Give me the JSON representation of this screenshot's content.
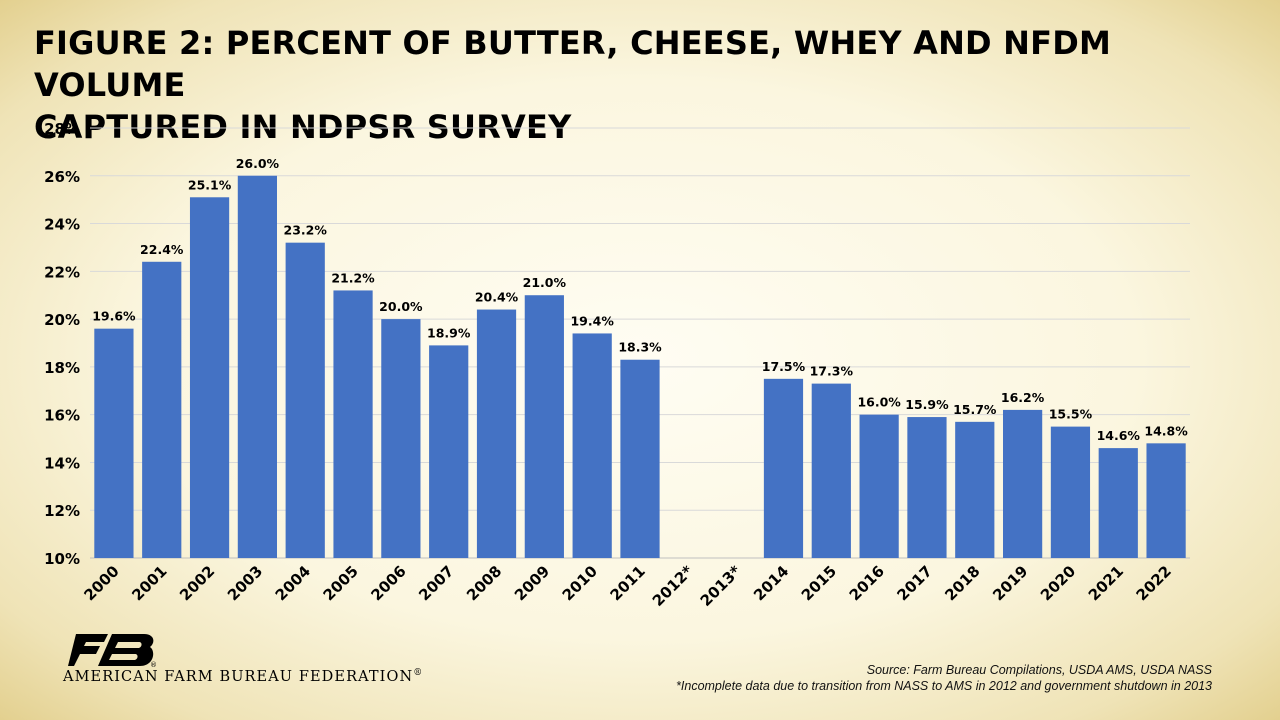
{
  "title_line1": "FIGURE 2: PERCENT OF BUTTER, CHEESE, WHEY AND NFDM VOLUME",
  "title_line2": "CAPTURED IN NDPSR SURVEY",
  "organization": "AMERICAN FARM BUREAU FEDERATION",
  "organization_mark": "®",
  "logo_text": "FB",
  "source_line": "Source: Farm Bureau Compilations, USDA AMS, USDA NASS",
  "footnote": "*Incomplete data due to transition from NASS to AMS in 2012 and government shutdown in 2013",
  "colors": {
    "bar": "#4472c4",
    "gridline": "#d9d9d9",
    "text": "#000000",
    "logo": "#000000"
  },
  "chart_data": {
    "type": "bar",
    "title": "FIGURE 2: PERCENT OF BUTTER, CHEESE, WHEY AND NFDM VOLUME CAPTURED IN NDPSR SURVEY",
    "xlabel": "",
    "ylabel": "",
    "categories": [
      "2000",
      "2001",
      "2002",
      "2003",
      "2004",
      "2005",
      "2006",
      "2007",
      "2008",
      "2009",
      "2010",
      "2011",
      "2012*",
      "2013*",
      "2014",
      "2015",
      "2016",
      "2017",
      "2018",
      "2019",
      "2020",
      "2021",
      "2022"
    ],
    "values": [
      19.6,
      22.4,
      25.1,
      26.0,
      23.2,
      21.2,
      20.0,
      18.9,
      20.4,
      21.0,
      19.4,
      18.3,
      null,
      null,
      17.5,
      17.3,
      16.0,
      15.9,
      15.7,
      16.2,
      15.5,
      14.6,
      14.8
    ],
    "data_labels": [
      "19.6%",
      "22.4%",
      "25.1%",
      "26.0%",
      "23.2%",
      "21.2%",
      "20.0%",
      "18.9%",
      "20.4%",
      "21.0%",
      "19.4%",
      "18.3%",
      "",
      "",
      "17.5%",
      "17.3%",
      "16.0%",
      "15.9%",
      "15.7%",
      "16.2%",
      "15.5%",
      "14.6%",
      "14.8%"
    ],
    "ylim": [
      10,
      28
    ],
    "yticks": [
      10,
      12,
      14,
      16,
      18,
      20,
      22,
      24,
      26,
      28
    ],
    "ytick_labels": [
      "10%",
      "12%",
      "14%",
      "16%",
      "18%",
      "20%",
      "22%",
      "24%",
      "26%",
      "28%"
    ],
    "grid": true,
    "legend": "none"
  }
}
